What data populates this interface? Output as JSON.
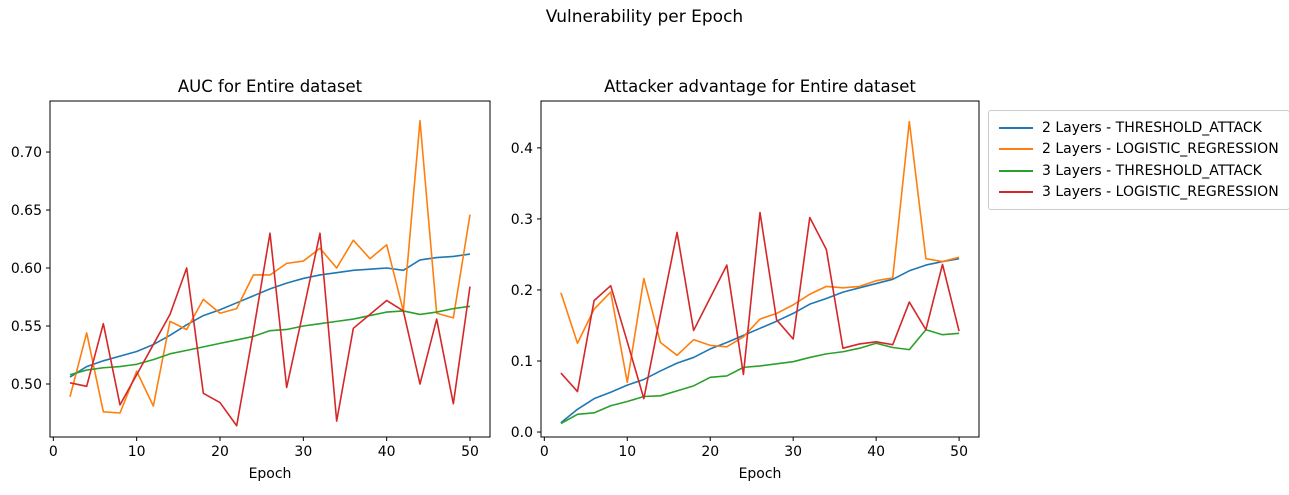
{
  "suptitle": "Vulnerability per Epoch",
  "colors": {
    "blue": "#1f77b4",
    "orange": "#ff7f0e",
    "green": "#2ca02c",
    "red": "#d62728",
    "axis": "#000000",
    "legend_border": "#cccccc",
    "background": "#ffffff"
  },
  "legend": {
    "entries": [
      {
        "label": "2 Layers - THRESHOLD_ATTACK",
        "color": "#1f77b4"
      },
      {
        "label": "2 Layers - LOGISTIC_REGRESSION",
        "color": "#ff7f0e"
      },
      {
        "label": "3 Layers - THRESHOLD_ATTACK",
        "color": "#2ca02c"
      },
      {
        "label": "3 Layers - LOGISTIC_REGRESSION",
        "color": "#d62728"
      }
    ]
  },
  "chart_data": [
    {
      "type": "line",
      "title": "AUC for Entire dataset",
      "xlabel": "Epoch",
      "ylabel": "",
      "x": [
        2,
        4,
        6,
        8,
        10,
        12,
        14,
        16,
        18,
        20,
        22,
        24,
        26,
        28,
        30,
        32,
        34,
        36,
        38,
        40,
        42,
        44,
        46,
        48,
        50
      ],
      "xlim": [
        -0.4,
        52.4
      ],
      "ylim": [
        0.4543,
        0.744
      ],
      "xticks": [
        0,
        10,
        20,
        30,
        40,
        50
      ],
      "xtick_labels": [
        "0",
        "10",
        "20",
        "30",
        "40",
        "50"
      ],
      "yticks": [
        0.5,
        0.55,
        0.6,
        0.65,
        0.7
      ],
      "ytick_labels": [
        "0.50",
        "0.55",
        "0.60",
        "0.65",
        "0.70"
      ],
      "grid": false,
      "series": [
        {
          "name": "2 Layers - THRESHOLD_ATTACK",
          "color": "#1f77b4",
          "values": [
            0.506,
            0.515,
            0.52,
            0.524,
            0.528,
            0.534,
            0.542,
            0.551,
            0.559,
            0.564,
            0.57,
            0.576,
            0.582,
            0.587,
            0.591,
            0.594,
            0.596,
            0.598,
            0.599,
            0.6,
            0.598,
            0.607,
            0.609,
            0.61,
            0.612
          ]
        },
        {
          "name": "2 Layers - LOGISTIC_REGRESSION",
          "color": "#ff7f0e",
          "values": [
            0.489,
            0.544,
            0.476,
            0.475,
            0.511,
            0.481,
            0.554,
            0.547,
            0.573,
            0.561,
            0.565,
            0.594,
            0.594,
            0.604,
            0.606,
            0.617,
            0.6,
            0.624,
            0.608,
            0.62,
            0.563,
            0.727,
            0.561,
            0.557,
            0.646
          ]
        },
        {
          "name": "3 Layers - THRESHOLD_ATTACK",
          "color": "#2ca02c",
          "values": [
            0.508,
            0.512,
            0.514,
            0.515,
            0.517,
            0.521,
            0.526,
            0.529,
            0.532,
            0.535,
            0.538,
            0.541,
            0.546,
            0.547,
            0.55,
            0.552,
            0.554,
            0.556,
            0.559,
            0.562,
            0.563,
            0.56,
            0.562,
            0.565,
            0.567
          ]
        },
        {
          "name": "3 Layers - LOGISTIC_REGRESSION",
          "color": "#d62728",
          "values": [
            0.501,
            0.498,
            0.552,
            0.482,
            0.508,
            0.534,
            0.56,
            0.6,
            0.492,
            0.484,
            0.464,
            0.545,
            0.63,
            0.497,
            0.563,
            0.63,
            0.468,
            0.548,
            0.56,
            0.572,
            0.563,
            0.5,
            0.556,
            0.483,
            0.584
          ]
        }
      ]
    },
    {
      "type": "line",
      "title": "Attacker advantage for Entire dataset",
      "xlabel": "Epoch",
      "ylabel": "",
      "x": [
        2,
        4,
        6,
        8,
        10,
        12,
        14,
        16,
        18,
        20,
        22,
        24,
        26,
        28,
        30,
        32,
        34,
        36,
        38,
        40,
        42,
        44,
        46,
        48,
        50
      ],
      "xlim": [
        -0.4,
        52.4
      ],
      "ylim": [
        -0.007,
        0.466
      ],
      "xticks": [
        0,
        10,
        20,
        30,
        40,
        50
      ],
      "xtick_labels": [
        "0",
        "10",
        "20",
        "30",
        "40",
        "50"
      ],
      "yticks": [
        0.0,
        0.1,
        0.2,
        0.3,
        0.4
      ],
      "ytick_labels": [
        "0.0",
        "0.1",
        "0.2",
        "0.3",
        "0.4"
      ],
      "grid": false,
      "series": [
        {
          "name": "2 Layers - THRESHOLD_ATTACK",
          "color": "#1f77b4",
          "values": [
            0.013,
            0.032,
            0.047,
            0.056,
            0.066,
            0.074,
            0.086,
            0.097,
            0.105,
            0.117,
            0.126,
            0.136,
            0.146,
            0.156,
            0.167,
            0.18,
            0.188,
            0.197,
            0.203,
            0.209,
            0.215,
            0.227,
            0.235,
            0.24,
            0.244
          ]
        },
        {
          "name": "2 Layers - LOGISTIC_REGRESSION",
          "color": "#ff7f0e",
          "values": [
            0.196,
            0.125,
            0.173,
            0.197,
            0.07,
            0.216,
            0.126,
            0.108,
            0.13,
            0.122,
            0.12,
            0.134,
            0.159,
            0.167,
            0.179,
            0.194,
            0.205,
            0.203,
            0.205,
            0.213,
            0.217,
            0.437,
            0.244,
            0.24,
            0.246
          ]
        },
        {
          "name": "3 Layers - THRESHOLD_ATTACK",
          "color": "#2ca02c",
          "values": [
            0.012,
            0.025,
            0.027,
            0.037,
            0.043,
            0.05,
            0.051,
            0.058,
            0.065,
            0.077,
            0.079,
            0.091,
            0.093,
            0.096,
            0.099,
            0.105,
            0.11,
            0.113,
            0.118,
            0.125,
            0.119,
            0.116,
            0.144,
            0.137,
            0.139
          ]
        },
        {
          "name": "3 Layers - LOGISTIC_REGRESSION",
          "color": "#d62728",
          "values": [
            0.083,
            0.057,
            0.185,
            0.206,
            0.127,
            0.047,
            0.165,
            0.281,
            0.143,
            0.189,
            0.235,
            0.081,
            0.309,
            0.158,
            0.131,
            0.302,
            0.257,
            0.118,
            0.124,
            0.127,
            0.123,
            0.183,
            0.144,
            0.236,
            0.142
          ]
        }
      ]
    }
  ]
}
